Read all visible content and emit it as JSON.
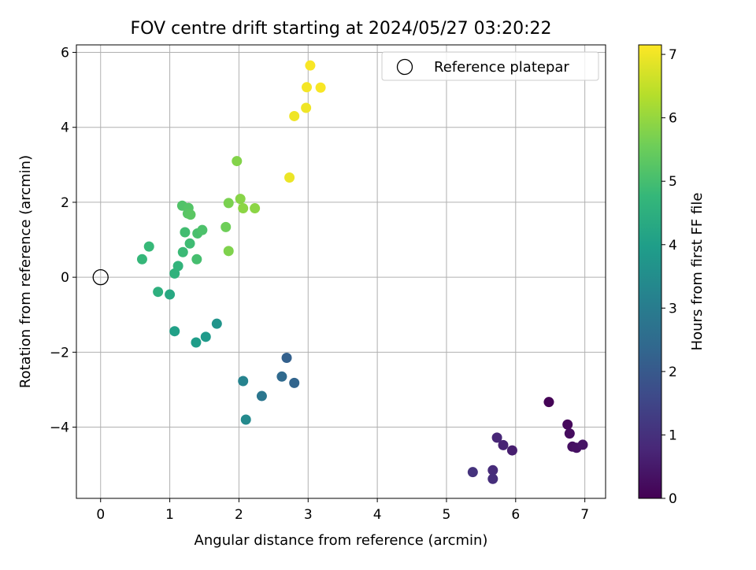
{
  "chart_data": {
    "type": "scatter",
    "title": "FOV centre drift starting at 2024/05/27 03:20:22",
    "xlabel": "Angular distance from reference (arcmin)",
    "ylabel": "Rotation from reference (arcmin)",
    "xlim": [
      -0.35,
      7.3
    ],
    "ylim": [
      -5.9,
      6.2
    ],
    "x_ticks": [
      0,
      1,
      2,
      3,
      4,
      5,
      6,
      7
    ],
    "x_tick_labels": [
      "0",
      "1",
      "2",
      "3",
      "4",
      "5",
      "6",
      "7"
    ],
    "y_ticks": [
      -4,
      -2,
      0,
      2,
      4,
      6
    ],
    "y_tick_labels": [
      "−4",
      "−2",
      "0",
      "2",
      "4",
      "6"
    ],
    "grid": true,
    "legend": {
      "placement": "top-right",
      "label": "Reference platepar"
    },
    "reference_point": {
      "x": 0,
      "y": 0
    },
    "colorbar": {
      "label": "Hours from first FF file",
      "range": [
        0,
        7.15
      ],
      "ticks": [
        0,
        1,
        2,
        3,
        4,
        5,
        6,
        7
      ],
      "tick_labels": [
        "0",
        "1",
        "2",
        "3",
        "4",
        "5",
        "6",
        "7"
      ],
      "colormap": "viridis",
      "stops": [
        "#440154",
        "#482878",
        "#3e4989",
        "#31688e",
        "#26828e",
        "#1f9e89",
        "#35b779",
        "#6ece58",
        "#b5de2b",
        "#fde725"
      ]
    },
    "points": [
      {
        "x": 6.48,
        "y": -3.33,
        "c": 0.05
      },
      {
        "x": 6.75,
        "y": -3.93,
        "c": 0.15
      },
      {
        "x": 6.78,
        "y": -4.17,
        "c": 0.22
      },
      {
        "x": 6.82,
        "y": -4.52,
        "c": 0.28
      },
      {
        "x": 6.88,
        "y": -4.55,
        "c": 0.32
      },
      {
        "x": 6.97,
        "y": -4.47,
        "c": 0.38
      },
      {
        "x": 5.95,
        "y": -4.62,
        "c": 0.6
      },
      {
        "x": 5.82,
        "y": -4.48,
        "c": 0.7
      },
      {
        "x": 5.73,
        "y": -4.28,
        "c": 0.78
      },
      {
        "x": 5.67,
        "y": -5.15,
        "c": 0.9
      },
      {
        "x": 5.67,
        "y": -5.38,
        "c": 0.95
      },
      {
        "x": 5.38,
        "y": -5.2,
        "c": 1.05
      },
      {
        "x": 2.69,
        "y": -2.15,
        "c": 2.2
      },
      {
        "x": 2.8,
        "y": -2.82,
        "c": 2.3
      },
      {
        "x": 2.62,
        "y": -2.65,
        "c": 2.45
      },
      {
        "x": 2.33,
        "y": -3.17,
        "c": 2.8
      },
      {
        "x": 2.06,
        "y": -2.77,
        "c": 3.2
      },
      {
        "x": 2.1,
        "y": -3.8,
        "c": 3.4
      },
      {
        "x": 1.68,
        "y": -1.24,
        "c": 3.7
      },
      {
        "x": 1.52,
        "y": -1.59,
        "c": 3.85
      },
      {
        "x": 1.38,
        "y": -1.74,
        "c": 3.95
      },
      {
        "x": 1.07,
        "y": -1.44,
        "c": 4.05
      },
      {
        "x": 1.0,
        "y": -0.46,
        "c": 4.3
      },
      {
        "x": 0.83,
        "y": -0.39,
        "c": 4.5
      },
      {
        "x": 1.07,
        "y": 0.1,
        "c": 4.6
      },
      {
        "x": 1.12,
        "y": 0.3,
        "c": 4.65
      },
      {
        "x": 0.6,
        "y": 0.48,
        "c": 4.75
      },
      {
        "x": 0.7,
        "y": 0.82,
        "c": 4.8
      },
      {
        "x": 1.19,
        "y": 0.67,
        "c": 4.85
      },
      {
        "x": 1.29,
        "y": 0.9,
        "c": 4.9
      },
      {
        "x": 1.22,
        "y": 1.2,
        "c": 4.95
      },
      {
        "x": 1.39,
        "y": 0.48,
        "c": 5.0
      },
      {
        "x": 1.4,
        "y": 1.17,
        "c": 5.05
      },
      {
        "x": 1.47,
        "y": 1.26,
        "c": 5.1
      },
      {
        "x": 1.18,
        "y": 1.91,
        "c": 5.15
      },
      {
        "x": 1.27,
        "y": 1.85,
        "c": 5.2
      },
      {
        "x": 1.26,
        "y": 1.7,
        "c": 5.25
      },
      {
        "x": 1.3,
        "y": 1.67,
        "c": 5.3
      },
      {
        "x": 1.81,
        "y": 1.34,
        "c": 5.55
      },
      {
        "x": 1.85,
        "y": 0.7,
        "c": 5.75
      },
      {
        "x": 1.85,
        "y": 1.98,
        "c": 5.7
      },
      {
        "x": 1.97,
        "y": 3.1,
        "c": 5.8
      },
      {
        "x": 2.02,
        "y": 2.09,
        "c": 5.85
      },
      {
        "x": 2.06,
        "y": 1.84,
        "c": 5.9
      },
      {
        "x": 2.23,
        "y": 1.84,
        "c": 5.9
      },
      {
        "x": 2.73,
        "y": 2.66,
        "c": 6.95
      },
      {
        "x": 2.8,
        "y": 4.3,
        "c": 7.0
      },
      {
        "x": 2.97,
        "y": 4.52,
        "c": 7.0
      },
      {
        "x": 2.98,
        "y": 5.07,
        "c": 7.05
      },
      {
        "x": 3.03,
        "y": 5.65,
        "c": 7.1
      },
      {
        "x": 3.18,
        "y": 5.06,
        "c": 7.1
      }
    ]
  }
}
